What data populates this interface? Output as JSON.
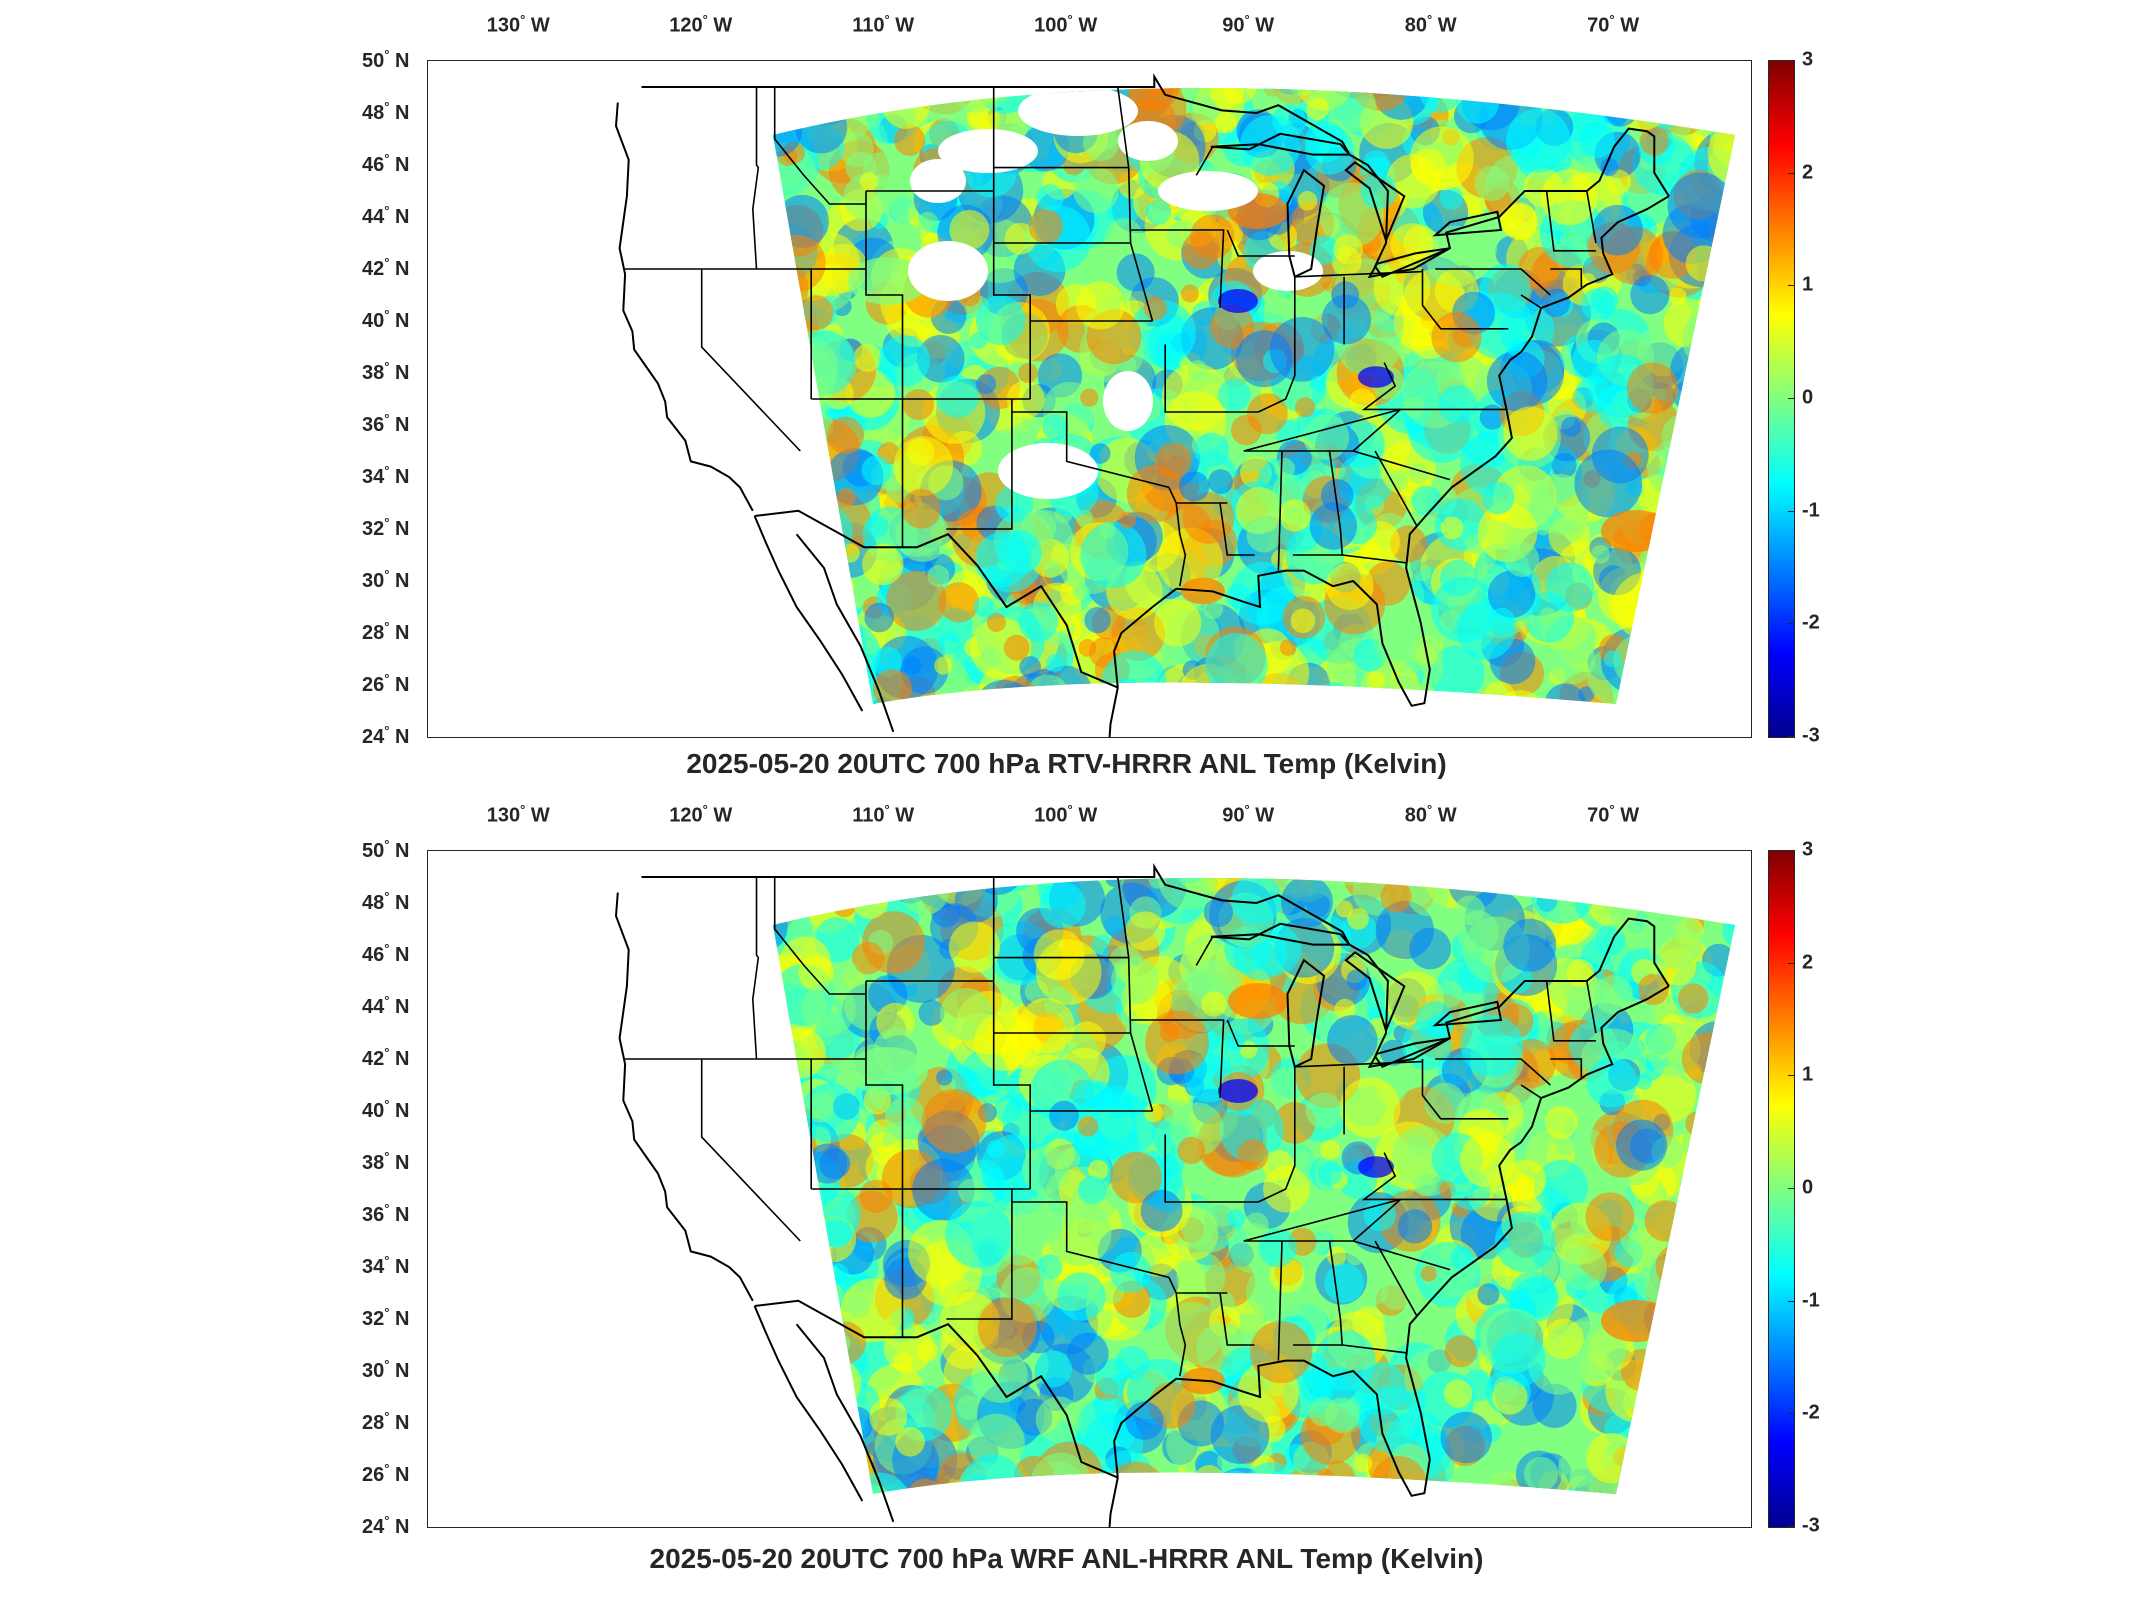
{
  "lon_labels": [
    "130",
    "120",
    "110",
    "100",
    "90",
    "80",
    "70"
  ],
  "lon_suffix": "W",
  "lat_labels": [
    "50",
    "48",
    "46",
    "44",
    "42",
    "40",
    "38",
    "36",
    "34",
    "32",
    "30",
    "28",
    "26",
    "24"
  ],
  "lat_suffix": "N",
  "colorbar": {
    "min": -3,
    "max": 3,
    "ticks": [
      "3",
      "2",
      "1",
      "0",
      "-1",
      "-2",
      "-3"
    ],
    "colormap": "jet",
    "colors": [
      "#00008f",
      "#0000ff",
      "#0080ff",
      "#00ffff",
      "#80ff80",
      "#ffff00",
      "#ff8000",
      "#ff0000",
      "#800000"
    ]
  },
  "panels": {
    "top": {
      "title": "2025-05-20 20UTC 700 hPa RTV-HRRR ANL Temp (Kelvin)"
    },
    "bottom": {
      "title": "2025-05-20 20UTC 700 hPa WRF ANL-HRRR ANL Temp (Kelvin)"
    }
  }
}
